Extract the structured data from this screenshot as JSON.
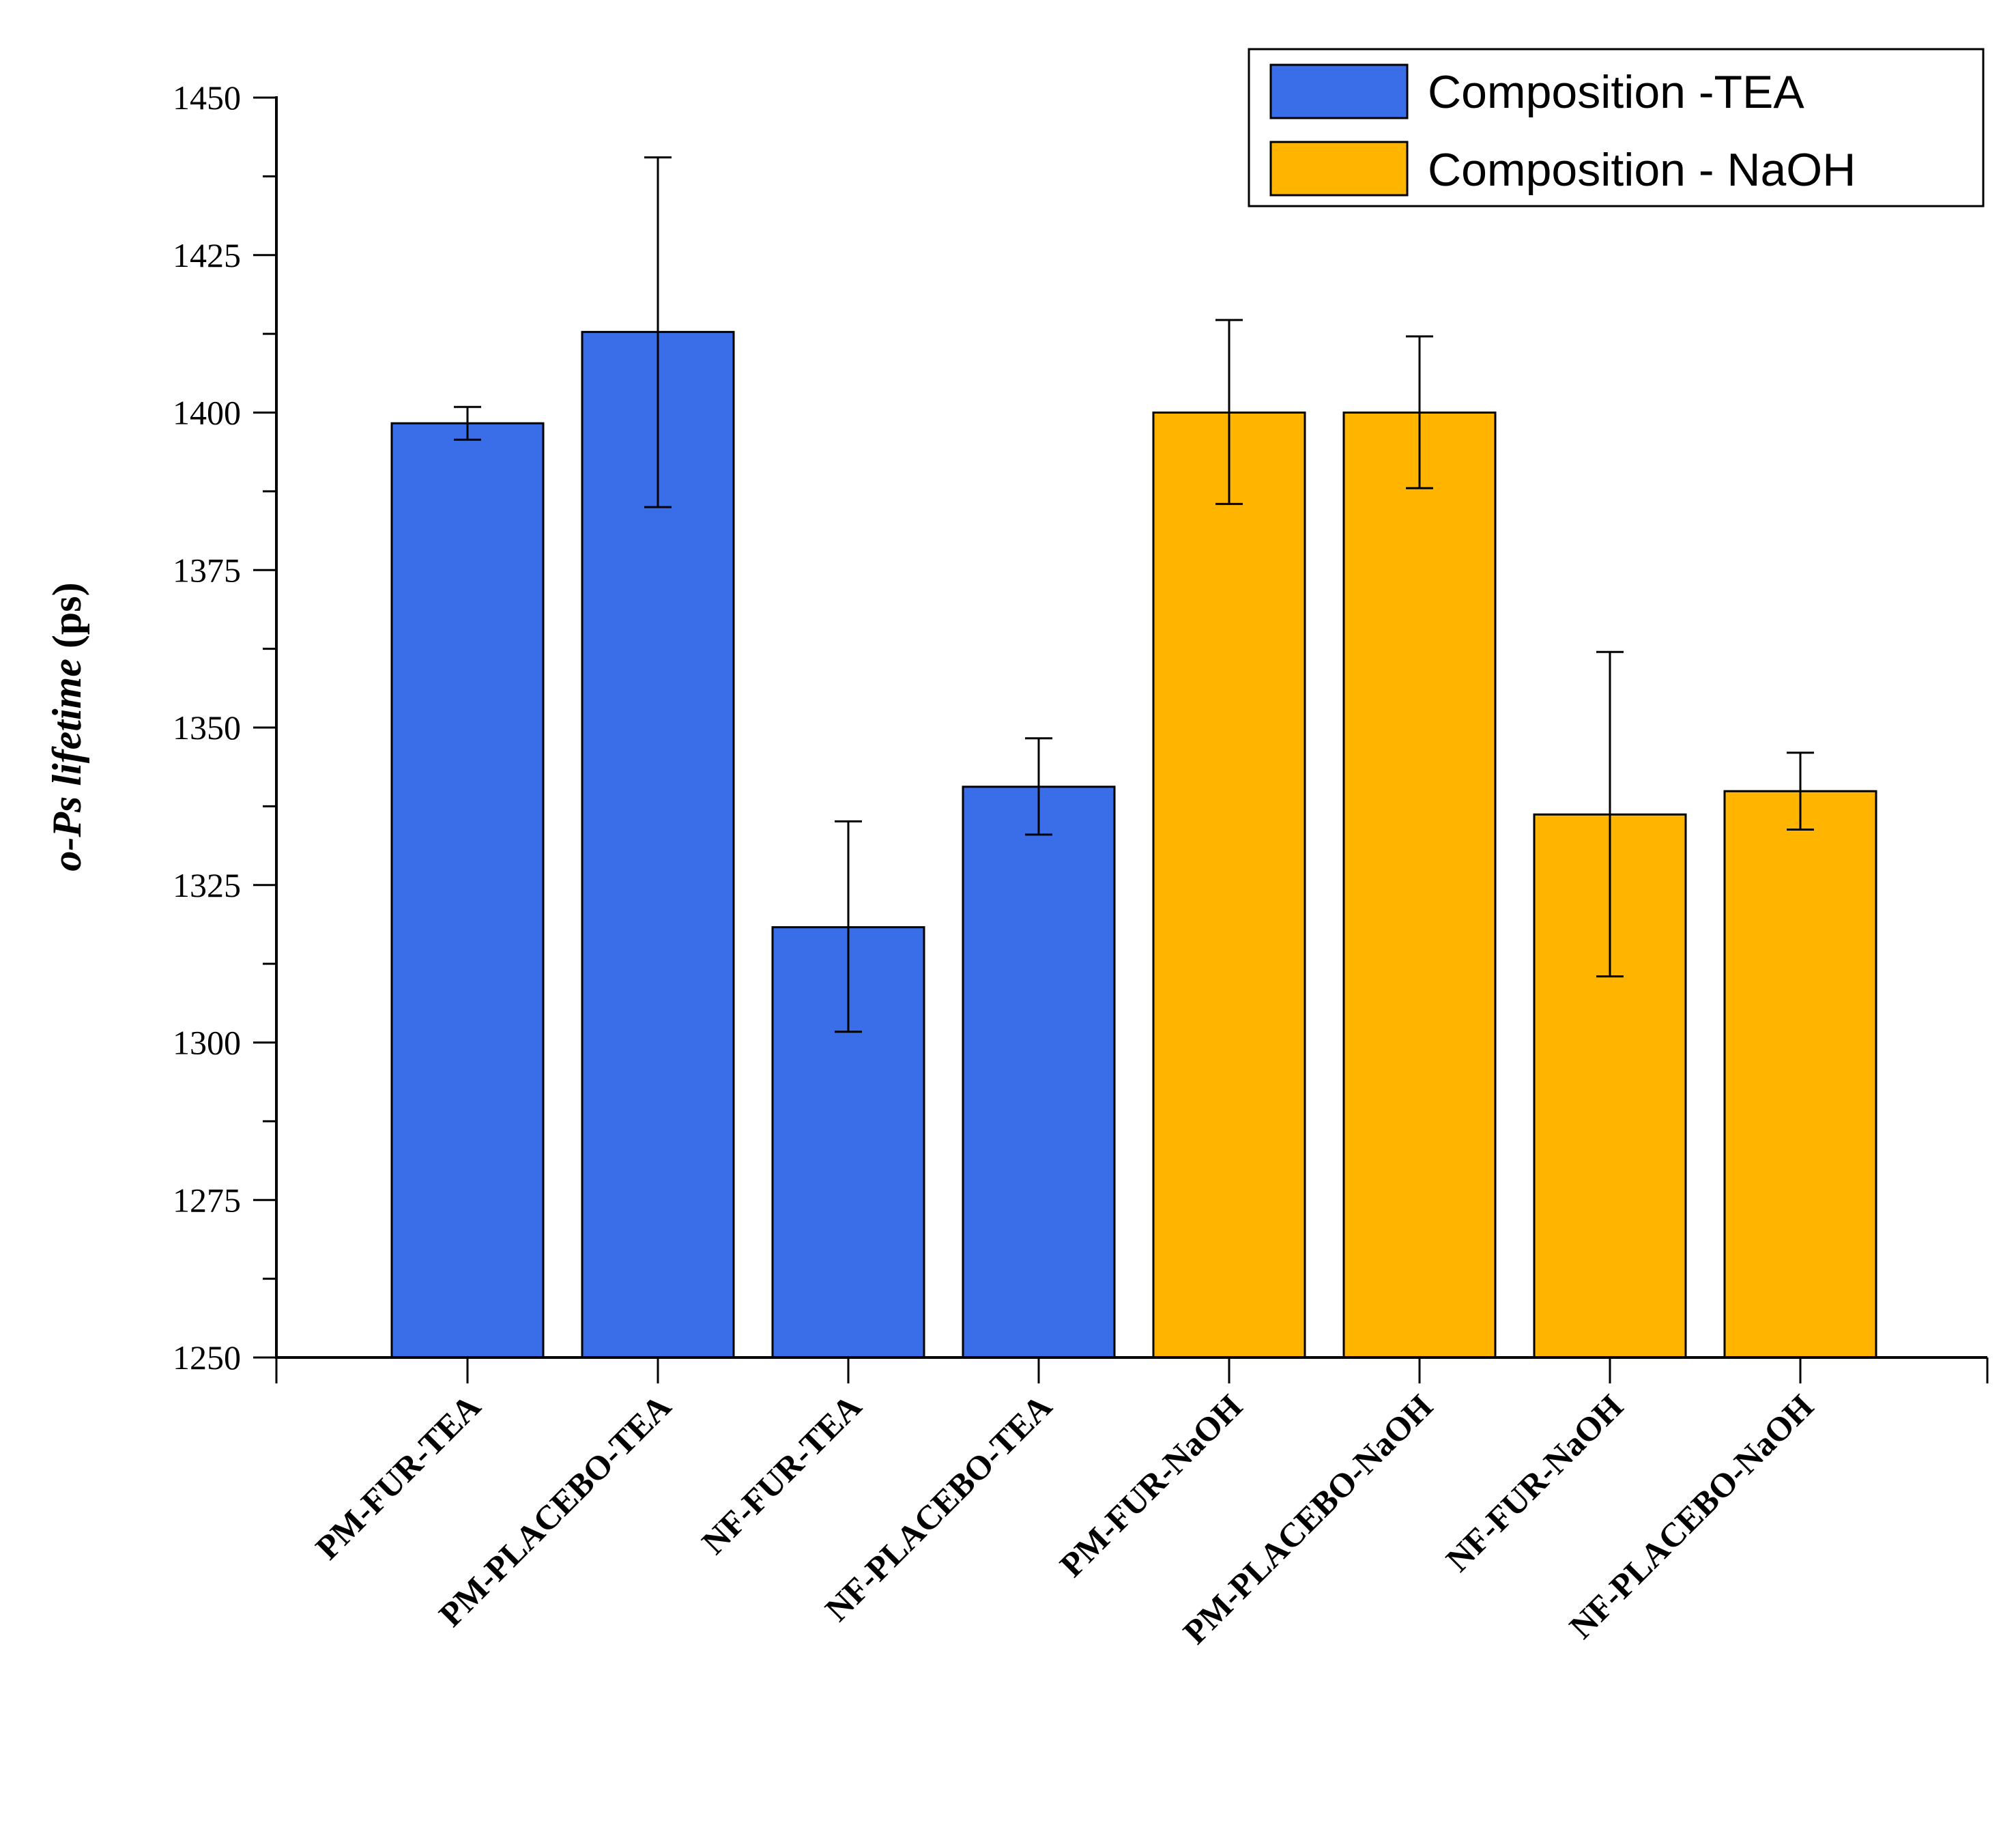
{
  "chart_data": {
    "type": "bar",
    "title": "",
    "xlabel": "",
    "ylabel_italic": "o-Ps lifetime",
    "ylabel_unit": " (ps)",
    "ylim": [
      1250,
      1450
    ],
    "yticks": [
      1250,
      1275,
      1300,
      1325,
      1350,
      1375,
      1400,
      1425,
      1450
    ],
    "yminor_step": 12.5,
    "categories": [
      "PM-FUR-TEA",
      "PM-PLACEBO-TEA",
      "NF-FUR-TEA",
      "NF-PLACEBO-TEA",
      "PM-FUR-NaOH",
      "PM-PLACEBO-NaOH",
      "NF-FUR-NaOH",
      "NF-PLACEBO-NaOH"
    ],
    "values": [
      1398.3,
      1412.8,
      1318.3,
      1340.6,
      1400.0,
      1400.0,
      1336.2,
      1339.9
    ],
    "error_low": [
      1395.7,
      1385.0,
      1301.7,
      1333.0,
      1385.5,
      1388.0,
      1310.5,
      1333.8
    ],
    "error_high": [
      1400.9,
      1440.5,
      1335.1,
      1348.3,
      1414.7,
      1412.1,
      1362.0,
      1346.0
    ],
    "series_index": [
      0,
      0,
      0,
      0,
      1,
      1,
      1,
      1
    ],
    "series": [
      {
        "name": "Composition -TEA",
        "color": "#3A6EE8"
      },
      {
        "name": "Composition - NaOH",
        "color": "#FFB400"
      }
    ],
    "legend_position": "top-right"
  }
}
